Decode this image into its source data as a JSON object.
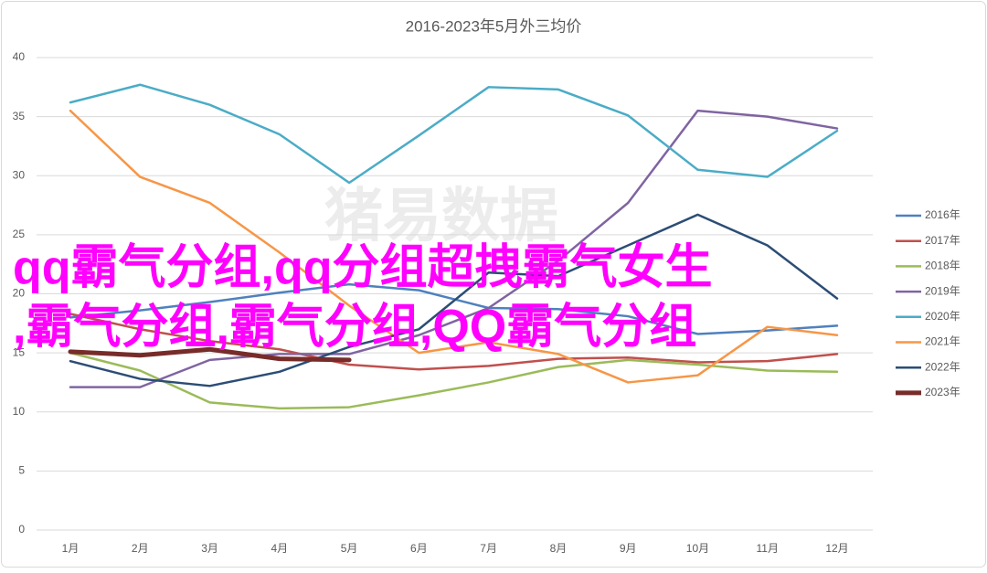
{
  "chart_data": {
    "type": "line",
    "title": "2016-2023年5月外三均价",
    "categories": [
      "1月",
      "2月",
      "3月",
      "4月",
      "5月",
      "6月",
      "7月",
      "8月",
      "9月",
      "10月",
      "11月",
      "12月"
    ],
    "ylim": [
      0,
      40
    ],
    "yticks": [
      0,
      5,
      10,
      15,
      20,
      25,
      30,
      35,
      40
    ],
    "grid": true,
    "legend": "right",
    "series": [
      {
        "name": "2016年",
        "color": "#4f81bd",
        "values": [
          18.0,
          18.6,
          19.3,
          20.1,
          20.8,
          20.3,
          18.8,
          18.7,
          18.1,
          16.6,
          16.9,
          17.3
        ]
      },
      {
        "name": "2017年",
        "color": "#c0504d",
        "values": [
          18.3,
          17.0,
          16.0,
          15.3,
          14.0,
          13.6,
          13.9,
          14.5,
          14.6,
          14.2,
          14.3,
          14.9
        ]
      },
      {
        "name": "2018年",
        "color": "#9bbb59",
        "values": [
          15.0,
          13.5,
          10.8,
          10.3,
          10.4,
          11.4,
          12.5,
          13.8,
          14.4,
          14.0,
          13.5,
          13.4
        ]
      },
      {
        "name": "2019年",
        "color": "#8064a2",
        "values": [
          12.1,
          12.1,
          14.4,
          14.9,
          14.9,
          16.5,
          18.8,
          22.8,
          27.7,
          35.5,
          35.0,
          34.0
        ]
      },
      {
        "name": "2020年",
        "color": "#4bacc6",
        "values": [
          36.2,
          37.7,
          36.0,
          33.5,
          29.4,
          33.4,
          37.5,
          37.3,
          35.1,
          30.5,
          29.9,
          33.8
        ]
      },
      {
        "name": "2021年",
        "color": "#f79646",
        "values": [
          35.5,
          29.9,
          27.7,
          23.5,
          19.0,
          15.0,
          15.9,
          14.9,
          12.5,
          13.1,
          17.2,
          16.5
        ]
      },
      {
        "name": "2022年",
        "color": "#2c4d75",
        "values": [
          14.3,
          12.8,
          12.2,
          13.4,
          15.5,
          17.0,
          21.8,
          21.5,
          24.1,
          26.7,
          24.1,
          19.6
        ]
      },
      {
        "name": "2023年",
        "color": "#772c2a",
        "values": [
          15.1,
          14.8,
          15.3,
          14.5,
          14.4,
          null,
          null,
          null,
          null,
          null,
          null,
          null
        ]
      }
    ]
  },
  "watermark": "猪易数据",
  "overlay": [
    "qq霸气分组,qq分组超拽霸气女生",
    ",霸气分组,霸气分组,QQ霸气分组"
  ]
}
